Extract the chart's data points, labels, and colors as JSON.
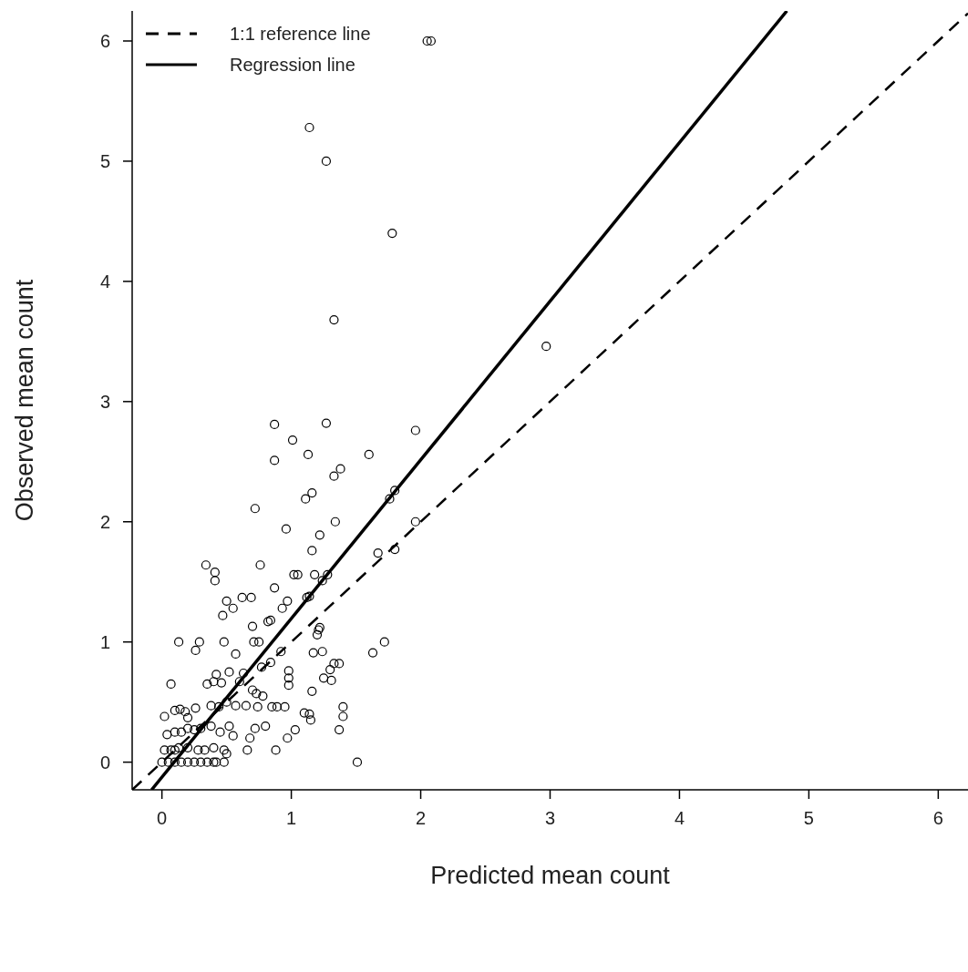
{
  "chart_data": {
    "type": "scatter",
    "xlabel": "Predicted mean count",
    "ylabel": "Observed mean count",
    "xlim": [
      -0.23,
      6.23
    ],
    "ylim": [
      -0.23,
      6.25
    ],
    "xticks": [
      0,
      1,
      2,
      3,
      4,
      5,
      6
    ],
    "yticks": [
      0,
      1,
      2,
      3,
      4,
      5,
      6
    ],
    "grid": false,
    "legend": "top left",
    "marker": "circle",
    "series": [
      {
        "color": "#000000",
        "x": [
          2.05,
          2.08,
          1.14,
          1.27,
          1.78,
          1.33,
          2.97,
          0.87,
          1.27,
          1.96,
          1.01,
          0.87,
          1.13,
          1.6,
          1.38,
          1.33,
          1.16,
          1.11,
          1.8,
          1.76,
          0.72,
          1.96,
          1.34,
          0.96,
          1.22,
          1.8,
          1.67,
          1.16,
          0.34,
          0.76,
          0.41,
          0.41,
          1.02,
          1.05,
          1.18,
          1.28,
          1.24,
          0.87,
          0.62,
          0.69,
          0.5,
          0.55,
          0.93,
          0.97,
          1.12,
          1.14,
          0.47,
          0.7,
          0.82,
          0.84,
          1.21,
          1.22,
          1.2,
          0.13,
          0.29,
          0.48,
          0.71,
          0.75,
          1.72,
          0.26,
          0.92,
          1.63,
          1.17,
          1.24,
          0.57,
          0.84,
          0.77,
          1.3,
          1.33,
          1.37,
          1.25,
          1.31,
          0.98,
          0.98,
          0.98,
          0.07,
          0.35,
          0.4,
          0.46,
          0.6,
          0.63,
          0.52,
          0.42,
          0.7,
          0.73,
          0.78,
          1.16,
          0.26,
          0.38,
          0.44,
          0.5,
          0.57,
          0.65,
          0.74,
          0.85,
          0.89,
          0.95,
          1.4,
          1.4,
          1.37,
          1.1,
          1.15,
          1.14,
          1.03,
          0.8,
          0.72,
          0.68,
          0.66,
          0.88,
          0.97,
          0.1,
          0.14,
          0.18,
          0.2,
          0.02,
          0.04,
          0.1,
          0.15,
          0.2,
          0.25,
          0.3,
          0.38,
          0.45,
          0.52,
          0.55,
          0.02,
          0.07,
          0.1,
          0.13,
          0.2,
          0.28,
          0.33,
          0.4,
          0.48,
          0.5,
          0.0,
          0.05,
          0.1,
          0.15,
          0.2,
          0.25,
          0.3,
          0.35,
          0.4,
          0.42,
          0.48,
          1.51
        ],
        "values": [
          6.0,
          6.0,
          5.28,
          5.0,
          4.4,
          3.68,
          3.46,
          2.81,
          2.82,
          2.76,
          2.68,
          2.51,
          2.56,
          2.56,
          2.44,
          2.38,
          2.24,
          2.19,
          2.26,
          2.19,
          2.11,
          2.0,
          2.0,
          1.94,
          1.89,
          1.77,
          1.74,
          1.76,
          1.64,
          1.64,
          1.58,
          1.51,
          1.56,
          1.56,
          1.56,
          1.56,
          1.51,
          1.45,
          1.37,
          1.37,
          1.34,
          1.28,
          1.28,
          1.34,
          1.37,
          1.38,
          1.22,
          1.13,
          1.17,
          1.18,
          1.1,
          1.12,
          1.06,
          1.0,
          1.0,
          1.0,
          1.0,
          1.0,
          1.0,
          0.93,
          0.92,
          0.91,
          0.91,
          0.92,
          0.9,
          0.83,
          0.79,
          0.77,
          0.82,
          0.82,
          0.7,
          0.68,
          0.76,
          0.7,
          0.64,
          0.65,
          0.65,
          0.67,
          0.66,
          0.67,
          0.74,
          0.75,
          0.73,
          0.6,
          0.57,
          0.55,
          0.59,
          0.45,
          0.47,
          0.46,
          0.5,
          0.47,
          0.47,
          0.46,
          0.46,
          0.46,
          0.46,
          0.46,
          0.38,
          0.27,
          0.41,
          0.35,
          0.4,
          0.27,
          0.3,
          0.28,
          0.2,
          0.1,
          0.1,
          0.2,
          0.43,
          0.44,
          0.42,
          0.37,
          0.38,
          0.23,
          0.25,
          0.25,
          0.28,
          0.27,
          0.28,
          0.3,
          0.25,
          0.3,
          0.22,
          0.1,
          0.1,
          0.1,
          0.12,
          0.12,
          0.1,
          0.1,
          0.12,
          0.1,
          0.07,
          0.0,
          0.0,
          0.0,
          0.0,
          0.0,
          0.0,
          0.0,
          0.0,
          0.0,
          0.0,
          0.0,
          0.0
        ]
      },
      {
        "type": "line",
        "name": "1:1 reference line",
        "color": "#000000",
        "marker": "none",
        "line_style": "dashed",
        "x": [
          -0.23,
          6.23
        ],
        "values": [
          -0.23,
          6.23
        ]
      },
      {
        "type": "line",
        "name": "Regression line",
        "color": "#000000",
        "marker": "none",
        "line_style": "solid",
        "x": [
          -0.08,
          4.83
        ],
        "values": [
          -0.23,
          6.25
        ]
      }
    ]
  }
}
